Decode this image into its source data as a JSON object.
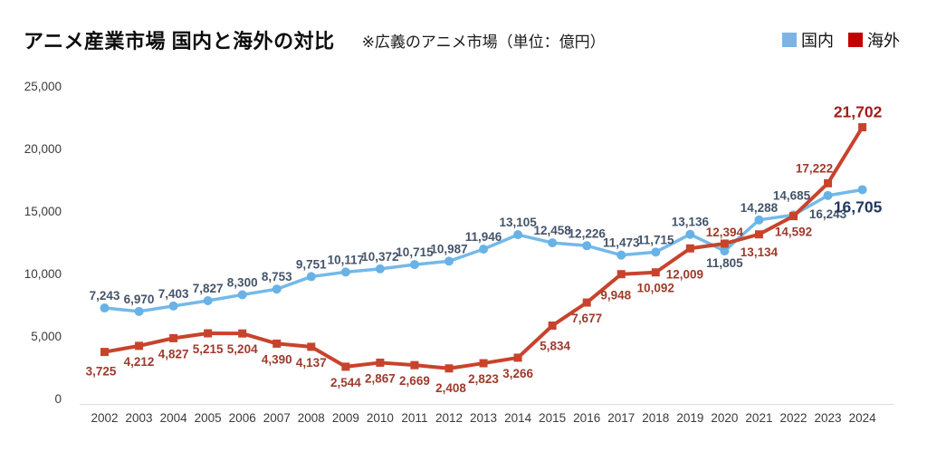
{
  "header": {
    "title": "アニメ産業市場 国内と海外の対比",
    "note": "※広義のアニメ市場（単位：億円）"
  },
  "legend": [
    {
      "label": "国内",
      "color": "#7CB5E5"
    },
    {
      "label": "海外",
      "color": "#C00000"
    }
  ],
  "chart_data": {
    "type": "line",
    "title": "アニメ産業市場 国内と海外の対比",
    "subtitle": "※広義のアニメ市場（単位：億円）",
    "unit": "億円",
    "categories": [
      "2002",
      "2003",
      "2004",
      "2005",
      "2006",
      "2007",
      "2008",
      "2009",
      "2010",
      "2011",
      "2012",
      "2013",
      "2014",
      "2015",
      "2016",
      "2017",
      "2018",
      "2019",
      "2020",
      "2021",
      "2022",
      "2023",
      "2024"
    ],
    "series": [
      {
        "name": "国内",
        "marker": "circle",
        "line_color": "#74B9E9",
        "marker_color": "#68B2E6",
        "label_color": "#44546A",
        "final_label_color": "#1F3864",
        "values": [
          7243,
          6970,
          7403,
          7827,
          8300,
          8753,
          9751,
          10117,
          10372,
          10715,
          10987,
          11946,
          13105,
          12458,
          12226,
          11473,
          11715,
          13136,
          11805,
          14288,
          14685,
          16243,
          16705
        ]
      },
      {
        "name": "海外",
        "marker": "square",
        "line_color": "#C8432C",
        "marker_color": "#C8432C",
        "label_color": "#9E3A2B",
        "final_label_color": "#A01E1C",
        "values": [
          3725,
          4212,
          4827,
          5215,
          5204,
          4390,
          4137,
          2544,
          2867,
          2669,
          2408,
          2823,
          3266,
          5834,
          7677,
          9948,
          10092,
          12009,
          12394,
          13134,
          14592,
          17222,
          21702
        ]
      }
    ],
    "ylim": [
      0,
      25000
    ],
    "ytick_step": 5000,
    "yticks": [
      "0",
      "5,000",
      "10,000",
      "15,000",
      "20,000",
      "25,000"
    ],
    "grid": false,
    "value_labels": true,
    "legend_position": "top-right"
  }
}
